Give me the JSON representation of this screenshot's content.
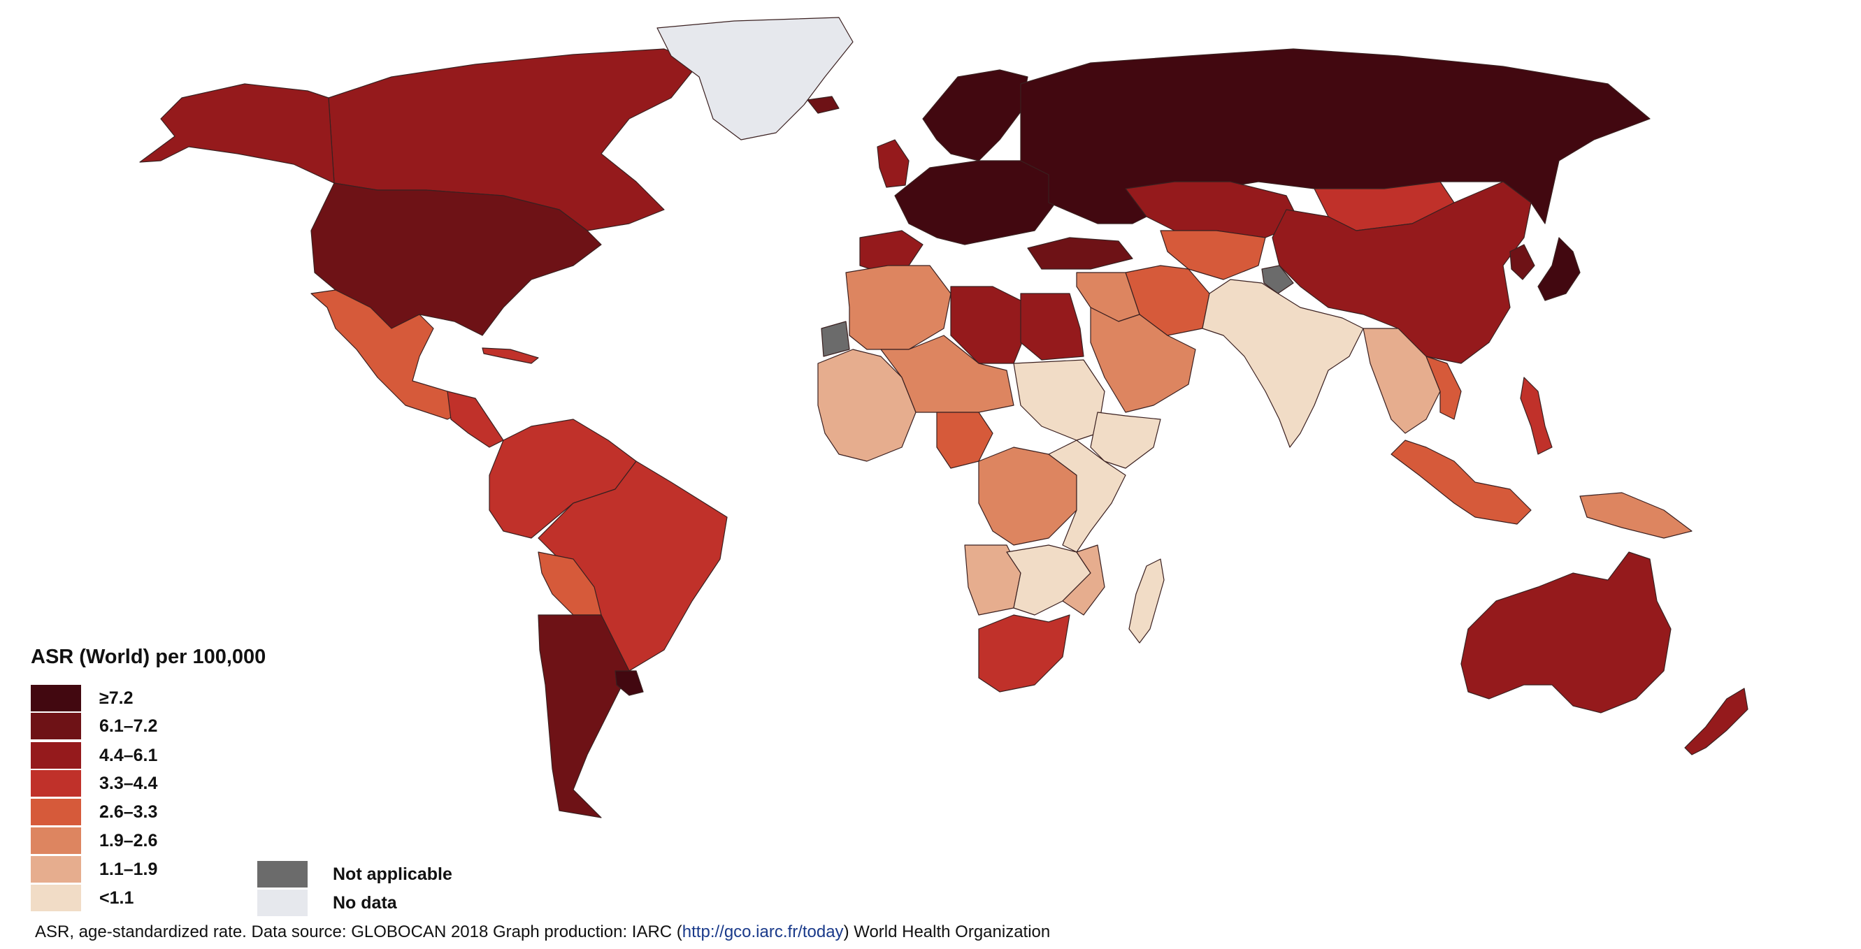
{
  "legend": {
    "title": "ASR (World) per 100,000",
    "classes": [
      {
        "label": "≥7.2",
        "color": "#420810"
      },
      {
        "label": "6.1–7.2",
        "color": "#6e1216"
      },
      {
        "label": "4.4–6.1",
        "color": "#951a1c"
      },
      {
        "label": "3.3–4.4",
        "color": "#c0312a"
      },
      {
        "label": "2.6–3.3",
        "color": "#d65a3a"
      },
      {
        "label": "1.9–2.6",
        "color": "#dd8560"
      },
      {
        "label": "1.1–1.9",
        "color": "#e6ad8e"
      },
      {
        "label": "<1.1",
        "color": "#f1dcc6"
      }
    ],
    "not_applicable": {
      "label": "Not applicable",
      "color": "#6b6b6b"
    },
    "no_data": {
      "label": "No data",
      "color": "#e6e8ed"
    }
  },
  "footnote": {
    "prefix": "ASR, age-standardized rate. Data source: GLOBOCAN 2018 Graph production: IARC (",
    "link": "http://gco.iarc.fr/today",
    "suffix": ") World Health Organization"
  },
  "regions": [
    {
      "name": "canada",
      "class": 2
    },
    {
      "name": "alaska",
      "class": 2
    },
    {
      "name": "usa",
      "class": 1
    },
    {
      "name": "mexico",
      "class": 4
    },
    {
      "name": "central-america",
      "class": 3
    },
    {
      "name": "cuba",
      "class": 3
    },
    {
      "name": "south-america-north",
      "class": 3
    },
    {
      "name": "brazil",
      "class": 3
    },
    {
      "name": "bolivia",
      "class": 4
    },
    {
      "name": "argentina",
      "class": 1
    },
    {
      "name": "uruguay",
      "class": 0
    },
    {
      "name": "greenland",
      "class": 9
    },
    {
      "name": "iceland",
      "class": 1
    },
    {
      "name": "uk",
      "class": 2
    },
    {
      "name": "western-europe",
      "class": 0
    },
    {
      "name": "iberia",
      "class": 2
    },
    {
      "name": "scandinavia",
      "class": 0
    },
    {
      "name": "russia",
      "class": 0
    },
    {
      "name": "turkey",
      "class": 1
    },
    {
      "name": "kazakhstan",
      "class": 2
    },
    {
      "name": "central-asia",
      "class": 4
    },
    {
      "name": "iran",
      "class": 4
    },
    {
      "name": "middle-east",
      "class": 5
    },
    {
      "name": "arabia",
      "class": 5
    },
    {
      "name": "kashmir",
      "class": 8
    },
    {
      "name": "india",
      "class": 7
    },
    {
      "name": "china",
      "class": 2
    },
    {
      "name": "mongolia",
      "class": 3
    },
    {
      "name": "japan",
      "class": 0
    },
    {
      "name": "korea",
      "class": 1
    },
    {
      "name": "southeast-asia",
      "class": 6
    },
    {
      "name": "vietnam",
      "class": 4
    },
    {
      "name": "philippines",
      "class": 3
    },
    {
      "name": "indonesia",
      "class": 4
    },
    {
      "name": "papua",
      "class": 5
    },
    {
      "name": "australia",
      "class": 2
    },
    {
      "name": "new-zealand",
      "class": 2
    },
    {
      "name": "western-sahara",
      "class": 8
    },
    {
      "name": "maghreb",
      "class": 5
    },
    {
      "name": "libya",
      "class": 2
    },
    {
      "name": "egypt",
      "class": 2
    },
    {
      "name": "west-africa",
      "class": 6
    },
    {
      "name": "sahel",
      "class": 5
    },
    {
      "name": "nigeria",
      "class": 4
    },
    {
      "name": "sudan",
      "class": 7
    },
    {
      "name": "ethiopia",
      "class": 7
    },
    {
      "name": "central-africa",
      "class": 5
    },
    {
      "name": "east-africa",
      "class": 7
    },
    {
      "name": "angola",
      "class": 6
    },
    {
      "name": "southern-africa-mid",
      "class": 7
    },
    {
      "name": "mozambique",
      "class": 6
    },
    {
      "name": "south-africa",
      "class": 3
    },
    {
      "name": "madagascar",
      "class": 7
    }
  ]
}
